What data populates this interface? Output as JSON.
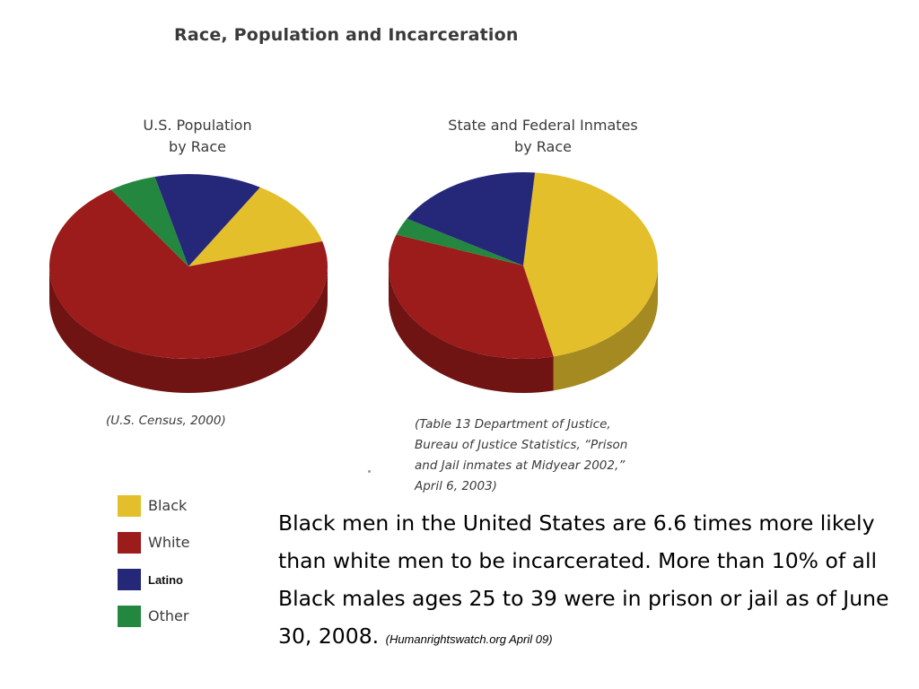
{
  "title": "Race, Population and Incarceration",
  "colors": {
    "Black": "#e4bf2c",
    "White": "#9c1b1b",
    "Latino": "#252778",
    "Other": "#24873f"
  },
  "chart_data": [
    {
      "type": "pie",
      "title_line1": "U.S. Population",
      "title_line2": "by Race",
      "source": "(U.S. Census, 2000)",
      "slices": [
        {
          "label": "Black",
          "value": 12
        },
        {
          "label": "White",
          "value": 70
        },
        {
          "label": "Other",
          "value": 5.5
        },
        {
          "label": "Latino",
          "value": 12.5
        }
      ]
    },
    {
      "type": "pie",
      "title_line1": "State and Federal Inmates",
      "title_line2": "by Race",
      "source_lines": [
        "(Table 13 Department of Justice,",
        "Bureau of Justice Statistics, “Prison",
        "and Jail inmates at Midyear 2002,”",
        "April 6, 2003)"
      ],
      "slices": [
        {
          "label": "Black",
          "value": 45
        },
        {
          "label": "White",
          "value": 34
        },
        {
          "label": "Other",
          "value": 3
        },
        {
          "label": "Latino",
          "value": 18
        }
      ]
    }
  ],
  "legend": [
    {
      "label": "Black",
      "color": "#e4bf2c"
    },
    {
      "label": "White",
      "color": "#9c1b1b"
    },
    {
      "label": "Latino",
      "color": "#252778"
    },
    {
      "label": "Other",
      "color": "#24873f"
    }
  ],
  "body": {
    "text": "Black men in the United States are 6.6 times more likely than white men to be incarcerated. More than 10% of all Black males ages 25 to 39 were in prison or jail as of June 30, 2008.",
    "citation": "(Humanrightswatch.org April 09)"
  }
}
